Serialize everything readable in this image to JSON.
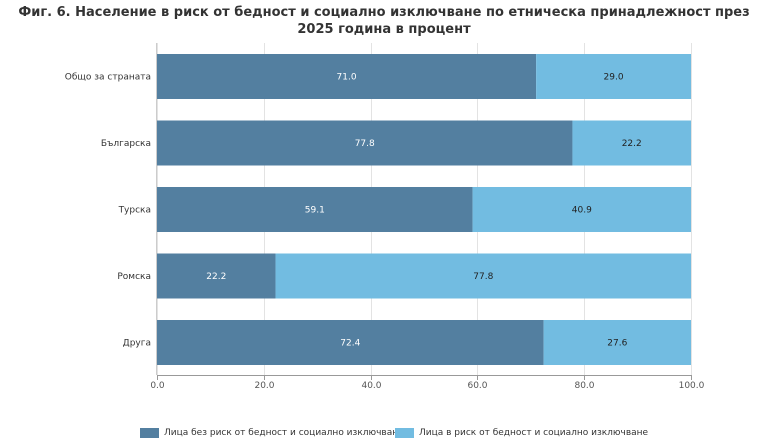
{
  "chart_data": {
    "type": "bar",
    "orientation": "horizontal",
    "stacked": true,
    "title": "Фиг. 6. Население в риск от бедност и социално изключване по етническа принадлежност през 2025 година в процент",
    "categories": [
      "Общо за страната",
      "Българска",
      "Турска",
      "Ромска",
      "Друга"
    ],
    "series": [
      {
        "name": "Лица без риск от бедност и социално изключване",
        "color": "#537fa0",
        "values": [
          71.0,
          77.8,
          59.1,
          22.2,
          72.4
        ]
      },
      {
        "name": "Лица в риск от бедност и социално изключване",
        "color": "#72bce1",
        "values": [
          29.0,
          22.2,
          40.9,
          77.8,
          27.6
        ]
      }
    ],
    "value_labels": [
      [
        "71.0",
        "77.8",
        "59.1",
        "22.2",
        "72.4"
      ],
      [
        "29.0",
        "22.2",
        "40.9",
        "77.8",
        "27.6"
      ]
    ],
    "xlim": [
      0,
      100
    ],
    "xticks": [
      "0.0",
      "20.0",
      "40.0",
      "60.0",
      "80.0",
      "100.0"
    ],
    "grid": true,
    "legend_position": "bottom"
  }
}
